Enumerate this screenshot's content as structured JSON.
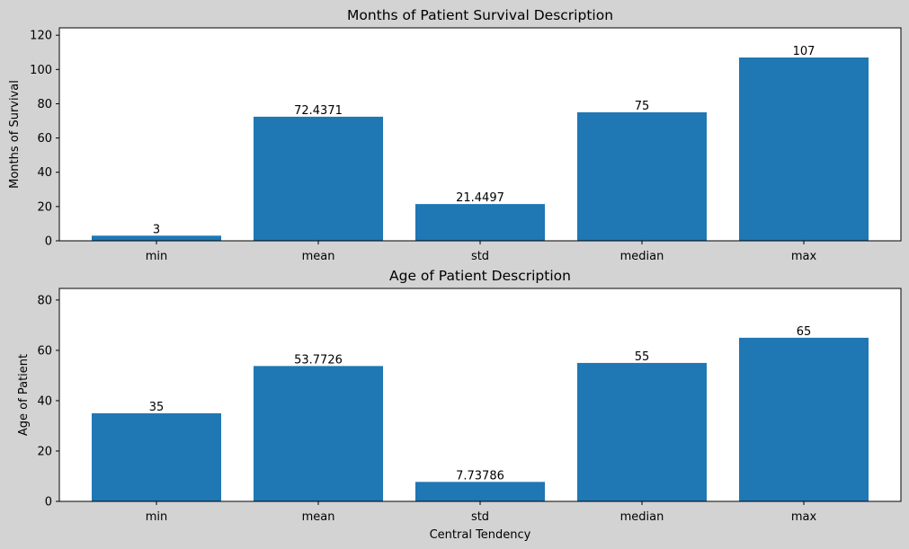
{
  "figure": {
    "background": "#d3d3d3"
  },
  "chart_data": [
    {
      "type": "bar",
      "title": "Months of Patient Survival Description",
      "xlabel": "",
      "ylabel": "Months of Survival",
      "categories": [
        "min",
        "mean",
        "std",
        "median",
        "max"
      ],
      "values": [
        3,
        72.4371,
        21.4497,
        75,
        107
      ],
      "data_labels": [
        "3",
        "72.4371",
        "21.4497",
        "75",
        "107"
      ],
      "ylim": [
        0,
        124.3
      ],
      "yticks": [
        0,
        20,
        40,
        60,
        80,
        100,
        120
      ],
      "grid": false,
      "bar_color": "#1f77b4"
    },
    {
      "type": "bar",
      "title": "Age of Patient Description",
      "xlabel": "Central Tendency",
      "ylabel": "Age of Patient",
      "categories": [
        "min",
        "mean",
        "std",
        "median",
        "max"
      ],
      "values": [
        35,
        53.7726,
        7.73786,
        55,
        65
      ],
      "data_labels": [
        "35",
        "53.7726",
        "7.73786",
        "55",
        "65"
      ],
      "ylim": [
        0,
        84.6
      ],
      "yticks": [
        0,
        20,
        40,
        60,
        80
      ],
      "grid": false,
      "bar_color": "#1f77b4"
    }
  ]
}
